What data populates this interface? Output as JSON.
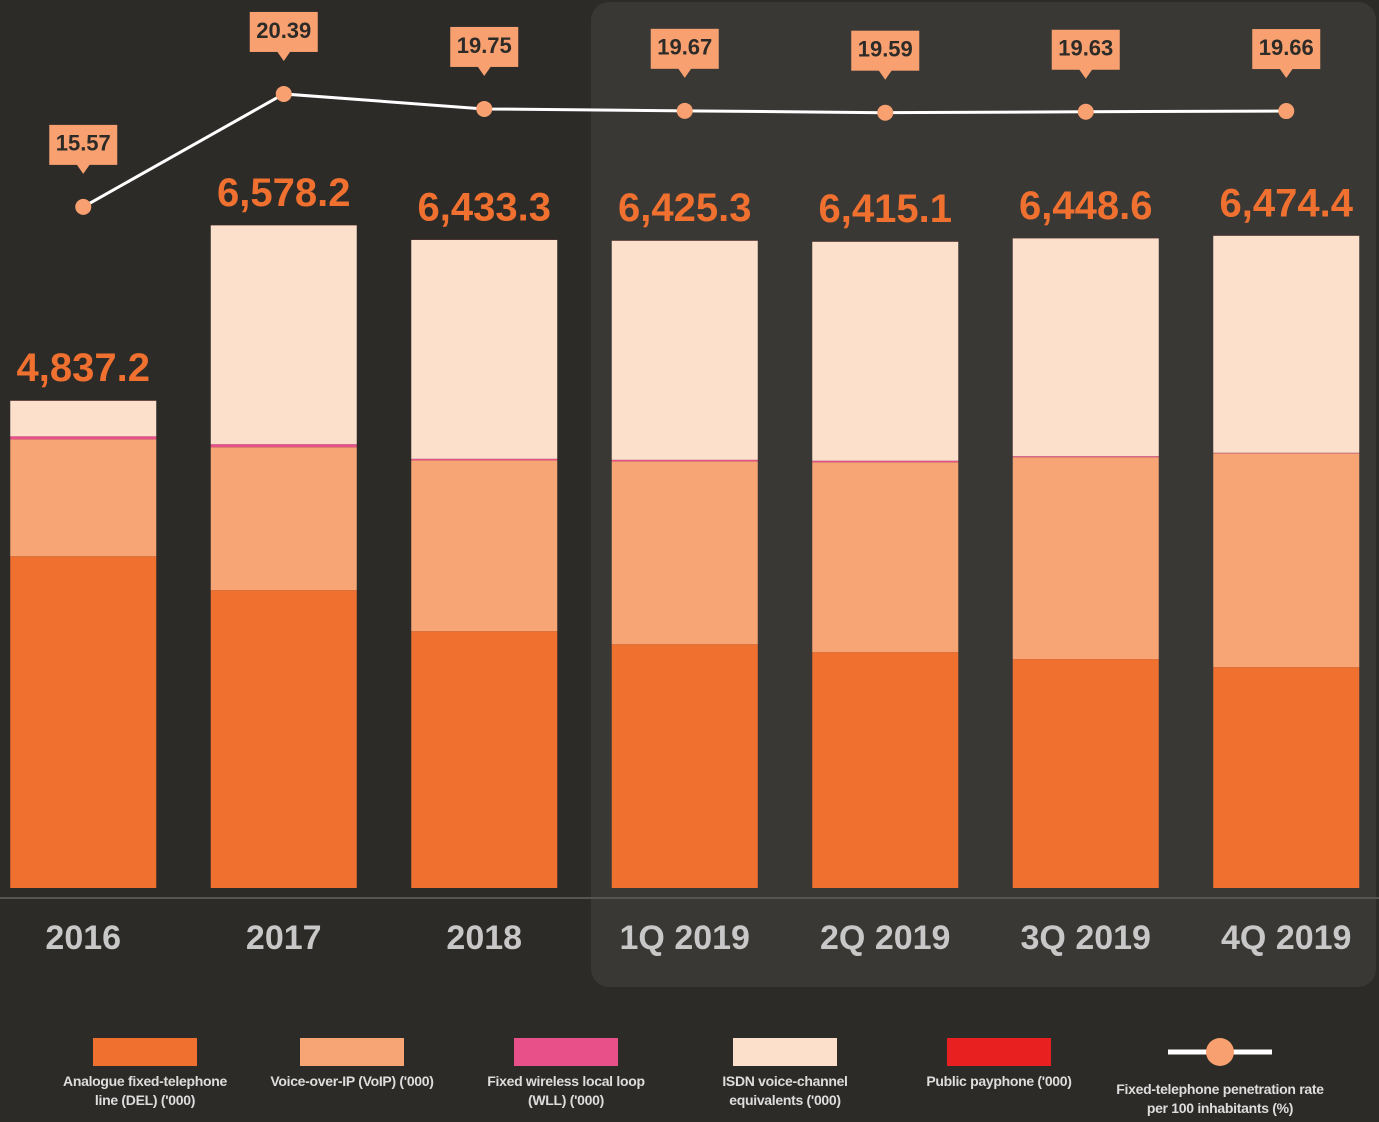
{
  "chart_data": {
    "type": "bar",
    "categories": [
      "2016",
      "2017",
      "2018",
      "1Q 2019",
      "2Q 2019",
      "3Q 2019",
      "4Q 2019"
    ],
    "total_labels": [
      "4,837.2",
      "6,578.2",
      "6,433.3",
      "6,425.3",
      "6,415.1",
      "6,448.6",
      "6,474.4"
    ],
    "series": [
      {
        "name": "Analogue fixed-telephone line (DEL) ('000)",
        "color": "#f07030",
        "values": [
          3293,
          2956,
          2549,
          2420,
          2341,
          2272,
          2192
        ]
      },
      {
        "name": "Voice-over-IP (VoIP) ('000)",
        "color": "#f8a576",
        "values": [
          1160,
          1419,
          1696,
          1815,
          1885,
          2004,
          2123
        ]
      },
      {
        "name": "Fixed wireless local loop (WLL) ('000)",
        "color": "#e8508a",
        "values": [
          30,
          30,
          15,
          15,
          15,
          10,
          5
        ]
      },
      {
        "name": "ISDN voice-channel equivalents ('000)",
        "color": "#fde0cc",
        "values": [
          353.2,
          2172.2,
          2172.3,
          2174.3,
          2173.1,
          2161.6,
          2153.4
        ]
      },
      {
        "name": "Public payphone ('000)",
        "color": "#e82020",
        "values": [
          1,
          1,
          1,
          1,
          1,
          1,
          1
        ]
      },
      {
        "name": "Fixed-telephone  penetration rate per 100 inhabitants (%)",
        "type": "line",
        "axis": "y2",
        "color": "#ffffff",
        "marker_color": "#f8a070",
        "values": [
          15.57,
          20.39,
          19.75,
          19.67,
          19.59,
          19.63,
          19.66
        ]
      }
    ],
    "ylim": [
      0,
      8000
    ],
    "y2lim": [
      -13.5,
      20.9
    ]
  }
}
